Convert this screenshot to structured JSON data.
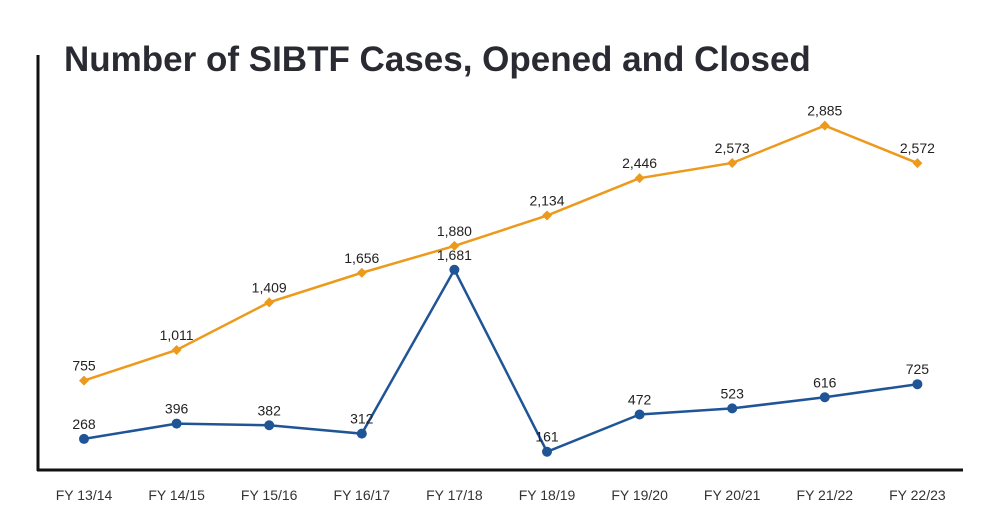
{
  "chart_data": {
    "type": "line",
    "title": "Number of SIBTF Cases, Opened and Closed",
    "xlabel": "",
    "ylabel": "",
    "categories": [
      "FY 13/14",
      "FY 14/15",
      "FY 15/16",
      "FY 16/17",
      "FY 17/18",
      "FY 18/19",
      "FY 19/20",
      "FY 20/21",
      "FY 21/22",
      "FY 22/23"
    ],
    "ylim": [
      0,
      3500
    ],
    "grid": false,
    "series": [
      {
        "values": [
          755,
          1011,
          1409,
          1656,
          1880,
          2134,
          2446,
          2573,
          2885,
          2572
        ],
        "color": "#ED9A1C",
        "marker": "diamond",
        "labels": [
          "755",
          "1,011",
          "1,409",
          "1,656",
          "1,880",
          "2,134",
          "2,446",
          "2,573",
          "2,885",
          "2,572"
        ]
      },
      {
        "values": [
          268,
          396,
          382,
          312,
          1681,
          161,
          472,
          523,
          616,
          725
        ],
        "color": "#1F5596",
        "marker": "circle",
        "labels": [
          "268",
          "396",
          "382",
          "312",
          "1,681",
          "161",
          "472",
          "523",
          "616",
          "725"
        ]
      }
    ]
  }
}
